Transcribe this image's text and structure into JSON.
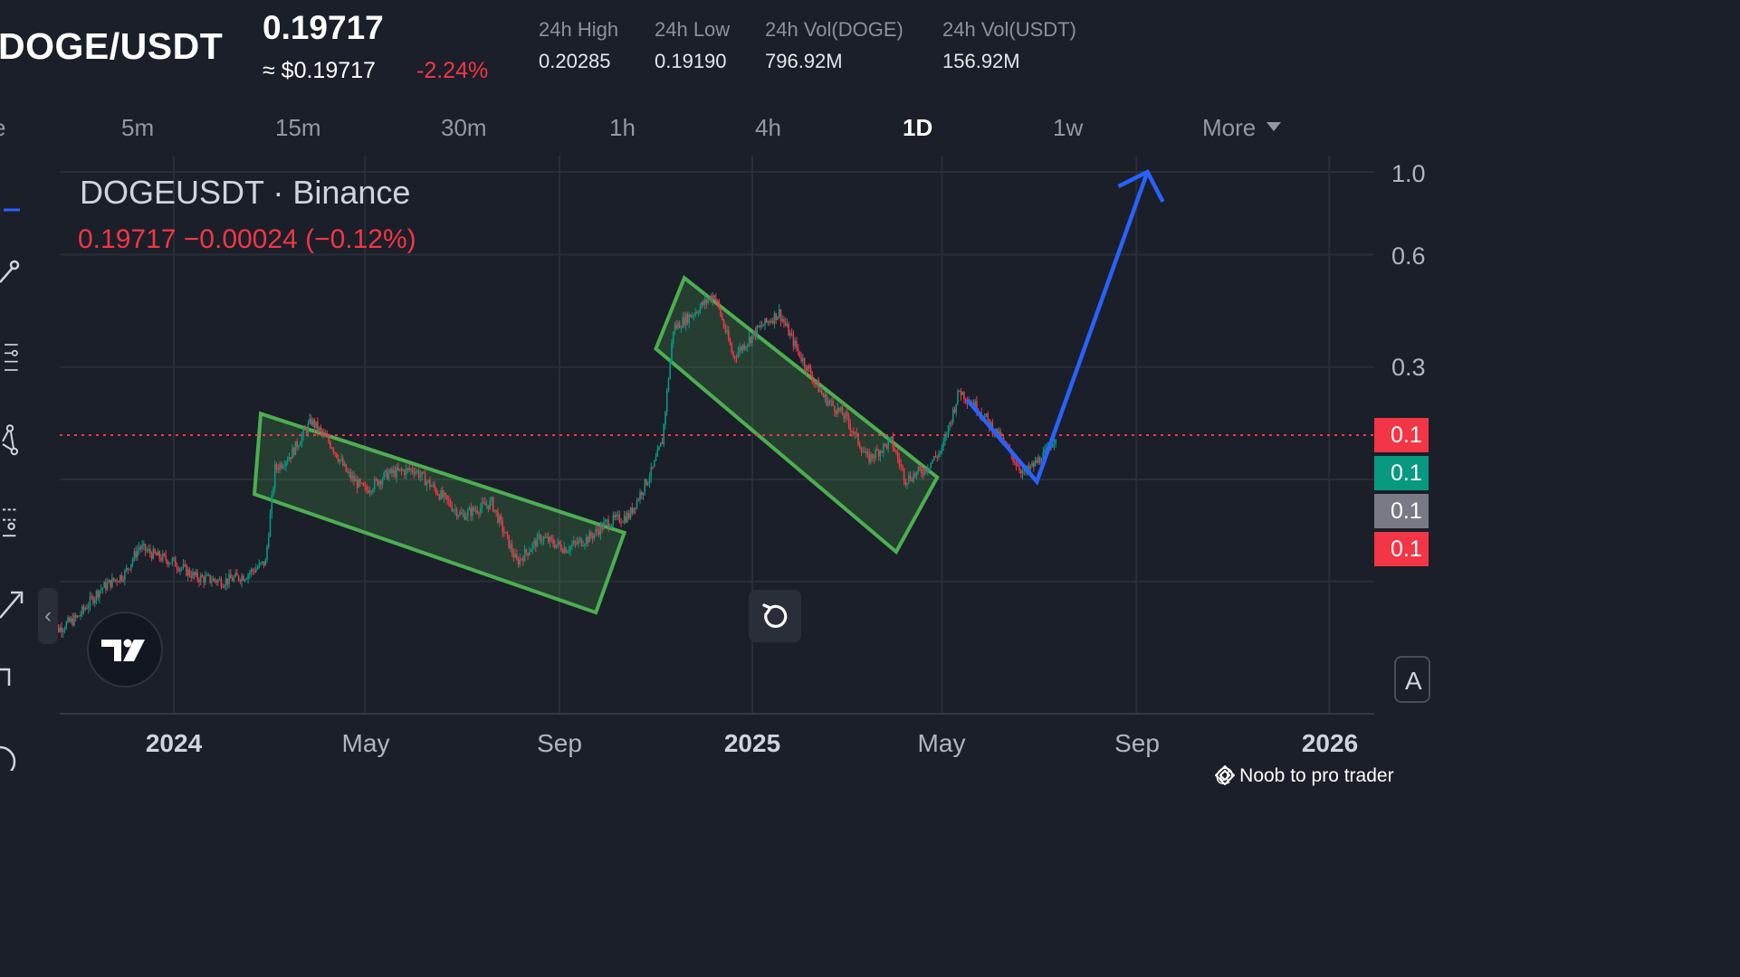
{
  "header": {
    "pair": "DOGE/USDT",
    "price": "0.19717",
    "approx": "≈ $0.19717",
    "change": "-2.24%",
    "stats": [
      {
        "label": "24h High",
        "value": "0.20285"
      },
      {
        "label": "24h Low",
        "value": "0.19190"
      },
      {
        "label": "24h Vol(DOGE)",
        "value": "796.92M"
      },
      {
        "label": "24h Vol(USDT)",
        "value": "156.92M"
      }
    ]
  },
  "timeframes": {
    "items": [
      "5m",
      "15m",
      "30m",
      "1h",
      "4h",
      "1D",
      "1w"
    ],
    "active": "1D",
    "more": "More"
  },
  "legend": {
    "symbol": "DOGEUSDT · Binance",
    "values": "0.19717  −0.00024 (−0.12%)"
  },
  "price_tags": [
    {
      "text": "0.1",
      "color": "#f23645"
    },
    {
      "text": "0.1",
      "color": "#089981"
    },
    {
      "text": "0.1",
      "color": "#787b86"
    },
    {
      "text": "0.1",
      "color": "#f23645"
    }
  ],
  "auto_button": "A",
  "watermark": "@ Noob to pro trader",
  "icons": [
    "crosshair-icon",
    "trendline-icon",
    "fib-icon",
    "pattern-icon",
    "forecast-icon",
    "arrow-icon",
    "brush-icon",
    "tradingview-logo",
    "reset-icon",
    "chevron-left-icon",
    "caret-down-icon"
  ],
  "colors": {
    "up": "#089981",
    "down": "#f23645",
    "channel": "#4caf50",
    "projection": "#2962ff",
    "background": "#1b1f29"
  },
  "chart_data": {
    "type": "candlestick",
    "title": "DOGEUSDT · Binance",
    "scale": "log",
    "x_tick_labels": [
      "2024",
      "May",
      "Sep",
      "2025",
      "May",
      "Sep",
      "2026"
    ],
    "y_tick_labels": [
      "1.0",
      "0.6",
      "0.3"
    ],
    "last_price": 0.19717,
    "series": [
      {
        "name": "DOGEUSDT",
        "points": [
          [
            "2023-10-15",
            0.058
          ],
          [
            "2023-11-01",
            0.064
          ],
          [
            "2023-11-15",
            0.076
          ],
          [
            "2023-12-01",
            0.084
          ],
          [
            "2023-12-10",
            0.099
          ],
          [
            "2023-12-20",
            0.094
          ],
          [
            "2024-01-01",
            0.09
          ],
          [
            "2024-01-15",
            0.082
          ],
          [
            "2024-02-01",
            0.08
          ],
          [
            "2024-02-15",
            0.083
          ],
          [
            "2024-02-28",
            0.09
          ],
          [
            "2024-03-05",
            0.16
          ],
          [
            "2024-03-15",
            0.175
          ],
          [
            "2024-03-28",
            0.215
          ],
          [
            "2024-04-10",
            0.185
          ],
          [
            "2024-04-20",
            0.155
          ],
          [
            "2024-05-01",
            0.14
          ],
          [
            "2024-05-15",
            0.155
          ],
          [
            "2024-06-01",
            0.16
          ],
          [
            "2024-06-15",
            0.14
          ],
          [
            "2024-07-01",
            0.12
          ],
          [
            "2024-07-20",
            0.13
          ],
          [
            "2024-08-05",
            0.09
          ],
          [
            "2024-08-20",
            0.105
          ],
          [
            "2024-09-05",
            0.098
          ],
          [
            "2024-09-20",
            0.105
          ],
          [
            "2024-10-01",
            0.115
          ],
          [
            "2024-10-15",
            0.12
          ],
          [
            "2024-10-30",
            0.16
          ],
          [
            "2024-11-05",
            0.19
          ],
          [
            "2024-11-12",
            0.38
          ],
          [
            "2024-11-25",
            0.42
          ],
          [
            "2024-12-08",
            0.47
          ],
          [
            "2024-12-20",
            0.32
          ],
          [
            "2025-01-05",
            0.38
          ],
          [
            "2025-01-18",
            0.42
          ],
          [
            "2025-01-30",
            0.33
          ],
          [
            "2025-02-15",
            0.25
          ],
          [
            "2025-03-01",
            0.22
          ],
          [
            "2025-03-15",
            0.17
          ],
          [
            "2025-03-30",
            0.19
          ],
          [
            "2025-04-08",
            0.15
          ],
          [
            "2025-04-20",
            0.16
          ],
          [
            "2025-05-01",
            0.18
          ],
          [
            "2025-05-12",
            0.26
          ],
          [
            "2025-05-25",
            0.23
          ],
          [
            "2025-06-08",
            0.19
          ],
          [
            "2025-06-22",
            0.155
          ],
          [
            "2025-07-05",
            0.175
          ],
          [
            "2025-07-12",
            0.197
          ]
        ]
      }
    ],
    "annotations": [
      {
        "type": "descending-channel",
        "from": "2024-03",
        "to": "2024-10"
      },
      {
        "type": "descending-channel",
        "from": "2024-12",
        "to": "2025-04"
      },
      {
        "type": "projection-arrow",
        "target": 1.0
      }
    ]
  }
}
